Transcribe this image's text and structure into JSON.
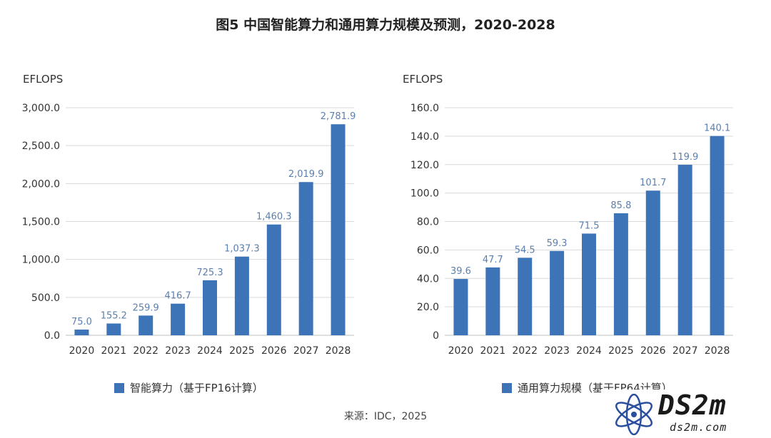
{
  "title": "图5 中国智能算力和通用算力规模及预测，2020-2028",
  "source": "来源：IDC，2025",
  "colors": {
    "bar": "#3d74b8",
    "label": "#5b7fae",
    "grid": "#d9d9d9",
    "axis": "#bfbfbf"
  },
  "watermark": {
    "main": "DS2m",
    "sub": "ds2m.com"
  },
  "chart_data": [
    {
      "type": "bar",
      "ylabel": "EFLOPS",
      "categories": [
        "2020",
        "2021",
        "2022",
        "2023",
        "2024",
        "2025",
        "2026",
        "2027",
        "2028"
      ],
      "series": [
        {
          "name": "智能算力（基于FP16计算）",
          "values": [
            75.0,
            155.2,
            259.9,
            416.7,
            725.3,
            1037.3,
            1460.3,
            2019.9,
            2781.9
          ]
        }
      ],
      "value_labels": [
        "75.0",
        "155.2",
        "259.9",
        "416.7",
        "725.3",
        "1,037.3",
        "1,460.3",
        "2,019.9",
        "2,781.9"
      ],
      "ylim": [
        0,
        3000
      ],
      "yticks": [
        0,
        500,
        1000,
        1500,
        2000,
        2500,
        3000
      ],
      "ytick_labels": [
        "0.0",
        "500.0",
        "1,000.0",
        "1,500.0",
        "2,000.0",
        "2,500.0",
        "3,000.0"
      ],
      "grid": true,
      "legend_position": "bottom"
    },
    {
      "type": "bar",
      "ylabel": "EFLOPS",
      "categories": [
        "2020",
        "2021",
        "2022",
        "2023",
        "2024",
        "2025",
        "2026",
        "2027",
        "2028"
      ],
      "series": [
        {
          "name": "通用算力规模（基于FP64计算）",
          "values": [
            39.6,
            47.7,
            54.5,
            59.3,
            71.5,
            85.8,
            101.7,
            119.9,
            140.1
          ]
        }
      ],
      "value_labels": [
        "39.6",
        "47.7",
        "54.5",
        "59.3",
        "71.5",
        "85.8",
        "101.7",
        "119.9",
        "140.1"
      ],
      "ylim": [
        0,
        160
      ],
      "yticks": [
        0,
        20,
        40,
        60,
        80,
        100,
        120,
        140,
        160
      ],
      "ytick_labels": [
        "0",
        "20.0",
        "40.0",
        "60.0",
        "80.0",
        "100.0",
        "120.0",
        "140.0",
        "160.0"
      ],
      "grid": true,
      "legend_position": "bottom"
    }
  ]
}
